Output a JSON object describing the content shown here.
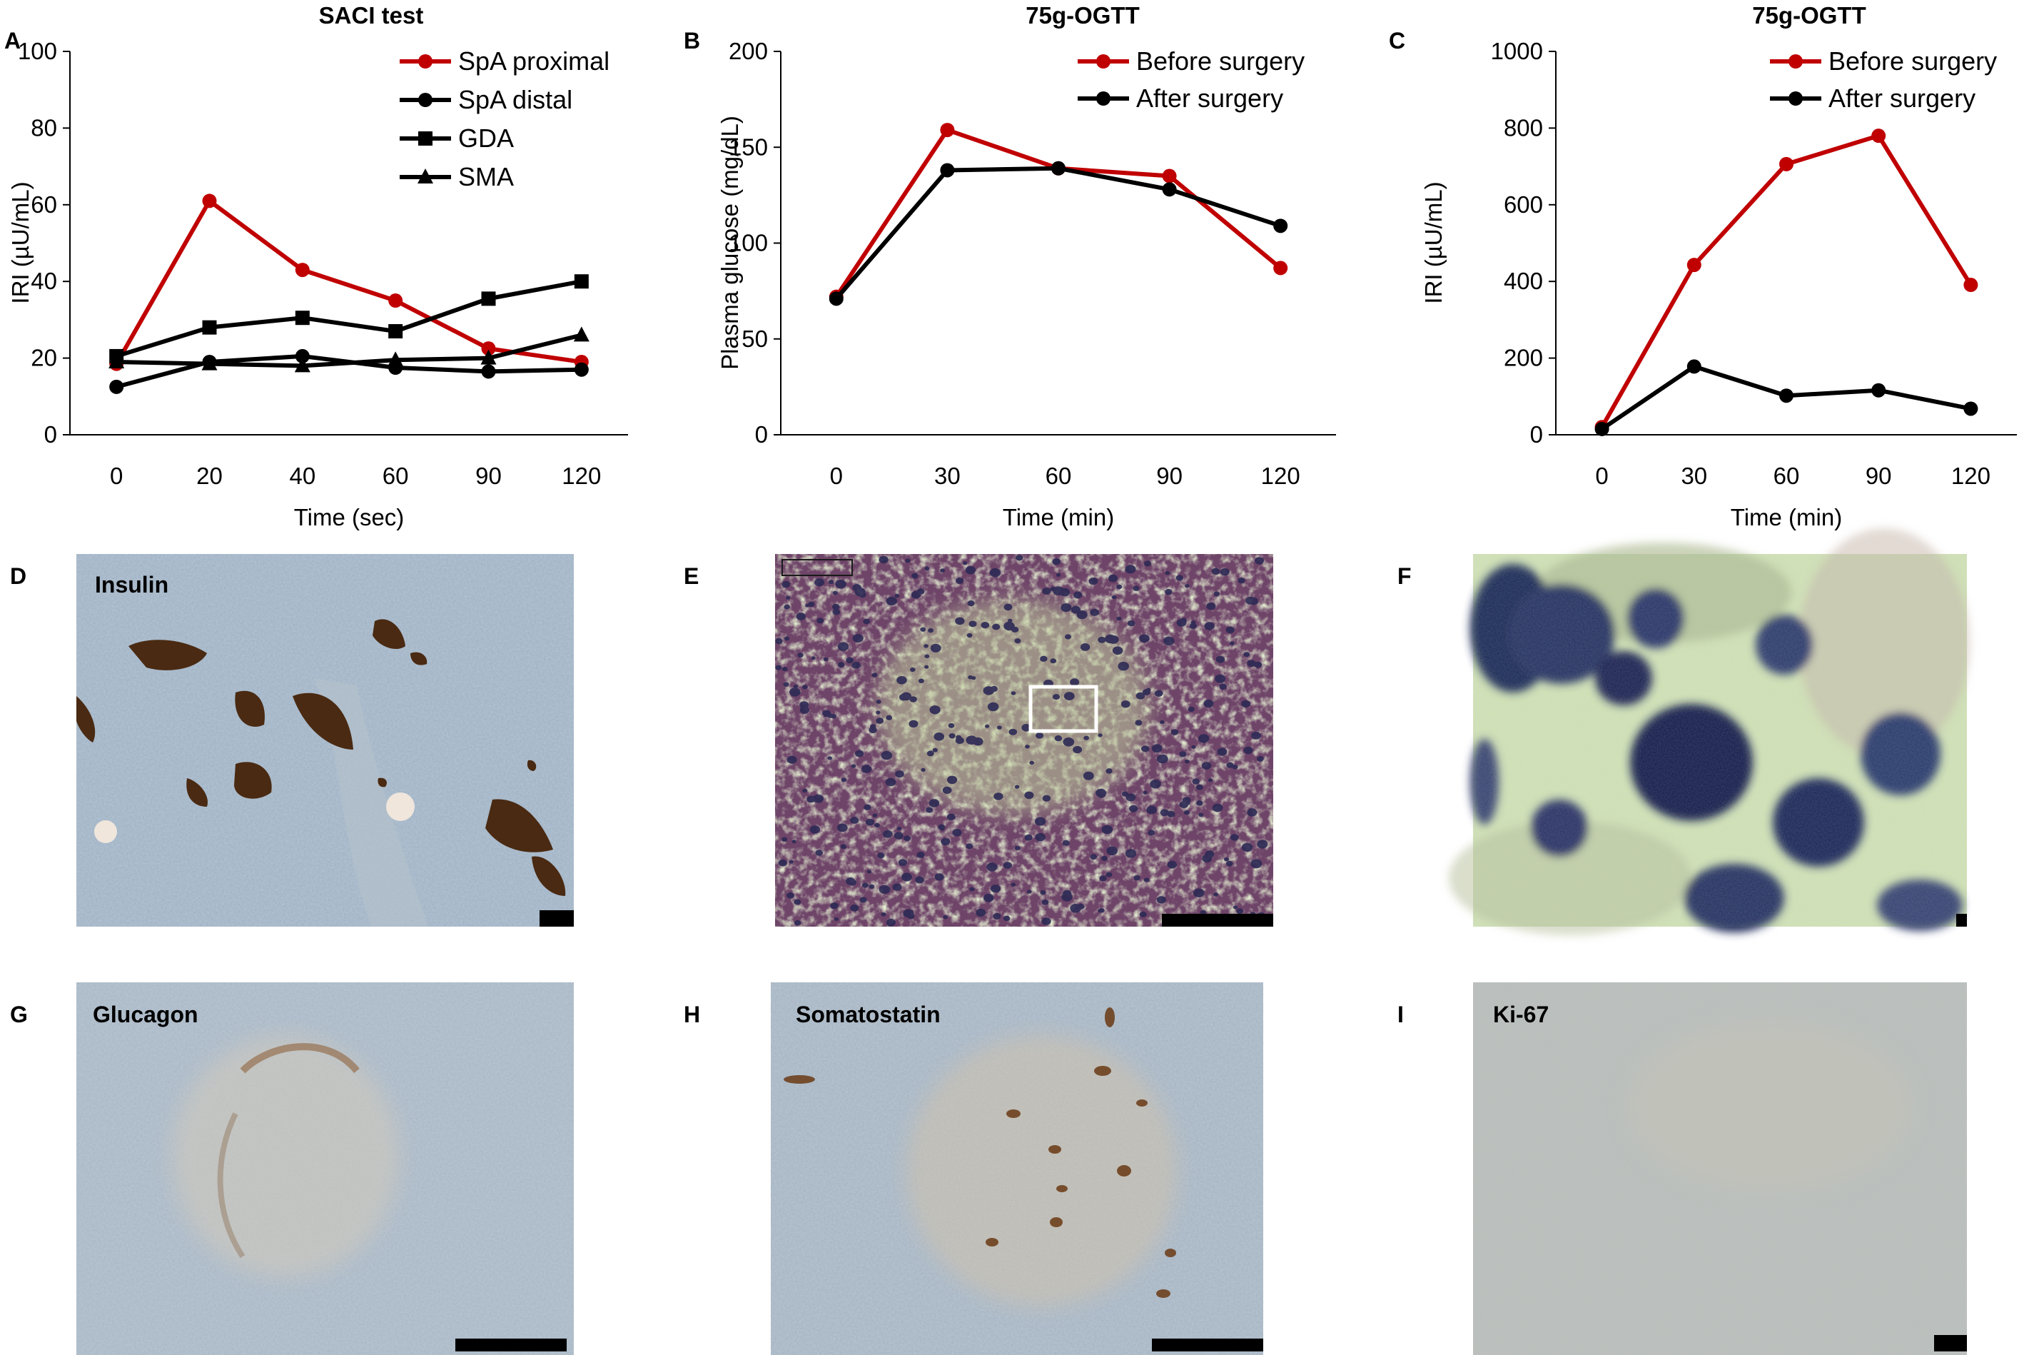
{
  "colors": {
    "red": "#c00000",
    "black": "#000000",
    "tissue_blue": "#9fb2c4",
    "he_pink": "#7a4a6e",
    "he_dark": "#2f2a55",
    "he_light": "#c9d7a8",
    "stain_brown": "#4a2a12",
    "scale_bar": "#000000"
  },
  "chart_data": [
    {
      "panel": "A",
      "type": "line",
      "title": "SACI test",
      "xlabel": "Time (sec)",
      "ylabel": "IRI (µU/mL)",
      "categories": [
        "0",
        "20",
        "40",
        "60",
        "90",
        "120"
      ],
      "ylim": [
        0,
        100
      ],
      "yticks": [
        "0",
        "20",
        "40",
        "60",
        "80",
        "100"
      ],
      "legend_position": "top-right",
      "series": [
        {
          "name": "SpA proximal",
          "marker": "circle",
          "color": "#c00000",
          "values": [
            18.5,
            61,
            43,
            35,
            22.5,
            19
          ]
        },
        {
          "name": "SpA distal",
          "marker": "circle",
          "color": "#000000",
          "values": [
            12.5,
            19,
            20.5,
            17.5,
            16.5,
            17
          ]
        },
        {
          "name": "GDA",
          "marker": "square",
          "color": "#000000",
          "values": [
            20.5,
            28,
            30.5,
            27,
            35.5,
            40
          ]
        },
        {
          "name": "SMA",
          "marker": "triangle",
          "color": "#000000",
          "values": [
            19,
            18.5,
            18,
            19.5,
            20,
            26
          ]
        }
      ]
    },
    {
      "panel": "B",
      "type": "line",
      "title": "75g-OGTT",
      "xlabel": "Time (min)",
      "ylabel": "Plasma glucose (mg/dL)",
      "categories": [
        "0",
        "30",
        "60",
        "90",
        "120"
      ],
      "ylim": [
        0,
        200
      ],
      "yticks": [
        "0",
        "50",
        "100",
        "150",
        "200"
      ],
      "legend_position": "top-right",
      "series": [
        {
          "name": "Before surgery",
          "marker": "circle",
          "color": "#c00000",
          "values": [
            72,
            159,
            139,
            135,
            87
          ]
        },
        {
          "name": "After surgery",
          "marker": "circle",
          "color": "#000000",
          "values": [
            71,
            138,
            139,
            128,
            109
          ]
        }
      ]
    },
    {
      "panel": "C",
      "type": "line",
      "title": "75g-OGTT",
      "xlabel": "Time (min)",
      "ylabel": "IRI (µU/mL)",
      "categories": [
        "0",
        "30",
        "60",
        "90",
        "120"
      ],
      "ylim": [
        0,
        1000
      ],
      "yticks": [
        "0",
        "200",
        "400",
        "600",
        "800",
        "1000"
      ],
      "legend_position": "top-right",
      "series": [
        {
          "name": "Before surgery",
          "marker": "circle",
          "color": "#c00000",
          "values": [
            20,
            443,
            706,
            780,
            391
          ]
        },
        {
          "name": "After surgery",
          "marker": "circle",
          "color": "#000000",
          "values": [
            15,
            178,
            102,
            116,
            68
          ]
        }
      ]
    }
  ],
  "images": [
    {
      "panel": "D",
      "label": "Insulin",
      "stain": "insulin-ihc"
    },
    {
      "panel": "E",
      "label": "",
      "stain": "he"
    },
    {
      "panel": "F",
      "label": "",
      "stain": "he-magnified"
    },
    {
      "panel": "G",
      "label": "Glucagon",
      "stain": "glucagon-ihc"
    },
    {
      "panel": "H",
      "label": "Somatostatin",
      "stain": "somatostatin-ihc"
    },
    {
      "panel": "I",
      "label": "Ki-67",
      "stain": "ki67-ihc"
    }
  ]
}
